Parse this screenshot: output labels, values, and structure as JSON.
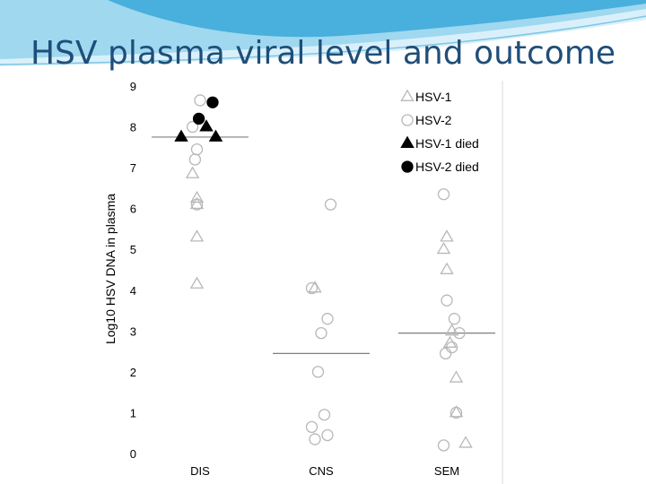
{
  "slide": {
    "title": "HSV plasma viral level and outcome",
    "colors": {
      "title": "#1f4e79",
      "wave_dark": "#3aa8d8",
      "wave_light": "#bfe6f5"
    }
  },
  "chart_data": {
    "type": "scatter",
    "title": "",
    "xlabel": "",
    "ylabel": "Log10 HSV DNA in plasma",
    "categories": [
      "DIS",
      "CNS",
      "SEM"
    ],
    "ylim": [
      0,
      9
    ],
    "yticks": [
      0,
      1,
      2,
      3,
      4,
      5,
      6,
      7,
      8,
      9
    ],
    "grid": false,
    "legend_position": "top-right",
    "medians": [
      {
        "category": "DIS",
        "value": 7.75
      },
      {
        "category": "CNS",
        "value": 2.45
      },
      {
        "category": "SEM",
        "value": 2.95
      }
    ],
    "series": [
      {
        "name": "HSV-1",
        "marker": "triangle",
        "filled": false,
        "points": [
          {
            "category": "DIS",
            "offset": -0.12,
            "value": 6.85
          },
          {
            "category": "DIS",
            "offset": -0.05,
            "value": 6.25
          },
          {
            "category": "DIS",
            "offset": -0.05,
            "value": 6.1
          },
          {
            "category": "DIS",
            "offset": -0.05,
            "value": 5.3
          },
          {
            "category": "DIS",
            "offset": -0.05,
            "value": 4.15
          },
          {
            "category": "CNS",
            "offset": -0.1,
            "value": 4.05
          },
          {
            "category": "SEM",
            "offset": 0.0,
            "value": 5.3
          },
          {
            "category": "SEM",
            "offset": -0.05,
            "value": 5.0
          },
          {
            "category": "SEM",
            "offset": 0.0,
            "value": 4.5
          },
          {
            "category": "SEM",
            "offset": 0.08,
            "value": 3.0
          },
          {
            "category": "SEM",
            "offset": 0.05,
            "value": 2.7
          },
          {
            "category": "SEM",
            "offset": 0.15,
            "value": 1.85
          },
          {
            "category": "SEM",
            "offset": 0.15,
            "value": 1.0
          },
          {
            "category": "SEM",
            "offset": 0.3,
            "value": 0.25
          }
        ]
      },
      {
        "name": "HSV-2",
        "marker": "circle",
        "filled": false,
        "points": [
          {
            "category": "DIS",
            "offset": 0.0,
            "value": 8.65
          },
          {
            "category": "DIS",
            "offset": -0.12,
            "value": 8.0
          },
          {
            "category": "DIS",
            "offset": -0.05,
            "value": 7.45
          },
          {
            "category": "DIS",
            "offset": -0.08,
            "value": 7.2
          },
          {
            "category": "DIS",
            "offset": -0.05,
            "value": 6.1
          },
          {
            "category": "CNS",
            "offset": 0.15,
            "value": 6.1
          },
          {
            "category": "CNS",
            "offset": -0.15,
            "value": 4.05
          },
          {
            "category": "CNS",
            "offset": 0.1,
            "value": 3.3
          },
          {
            "category": "CNS",
            "offset": 0.0,
            "value": 2.95
          },
          {
            "category": "CNS",
            "offset": -0.05,
            "value": 2.0
          },
          {
            "category": "CNS",
            "offset": 0.05,
            "value": 0.95
          },
          {
            "category": "CNS",
            "offset": -0.15,
            "value": 0.65
          },
          {
            "category": "CNS",
            "offset": -0.1,
            "value": 0.35
          },
          {
            "category": "CNS",
            "offset": 0.1,
            "value": 0.45
          },
          {
            "category": "SEM",
            "offset": -0.05,
            "value": 6.35
          },
          {
            "category": "SEM",
            "offset": 0.0,
            "value": 3.75
          },
          {
            "category": "SEM",
            "offset": 0.12,
            "value": 3.3
          },
          {
            "category": "SEM",
            "offset": 0.2,
            "value": 2.95
          },
          {
            "category": "SEM",
            "offset": 0.08,
            "value": 2.6
          },
          {
            "category": "SEM",
            "offset": -0.02,
            "value": 2.45
          },
          {
            "category": "SEM",
            "offset": 0.15,
            "value": 1.0
          },
          {
            "category": "SEM",
            "offset": -0.05,
            "value": 0.2
          }
        ]
      },
      {
        "name": "HSV-1 died",
        "marker": "triangle",
        "filled": true,
        "points": [
          {
            "category": "DIS",
            "offset": -0.3,
            "value": 7.75
          },
          {
            "category": "DIS",
            "offset": 0.1,
            "value": 8.0
          },
          {
            "category": "DIS",
            "offset": 0.25,
            "value": 7.75
          }
        ]
      },
      {
        "name": "HSV-2 died",
        "marker": "circle",
        "filled": true,
        "points": [
          {
            "category": "DIS",
            "offset": 0.2,
            "value": 8.6
          },
          {
            "category": "DIS",
            "offset": -0.02,
            "value": 8.2
          }
        ]
      }
    ]
  }
}
